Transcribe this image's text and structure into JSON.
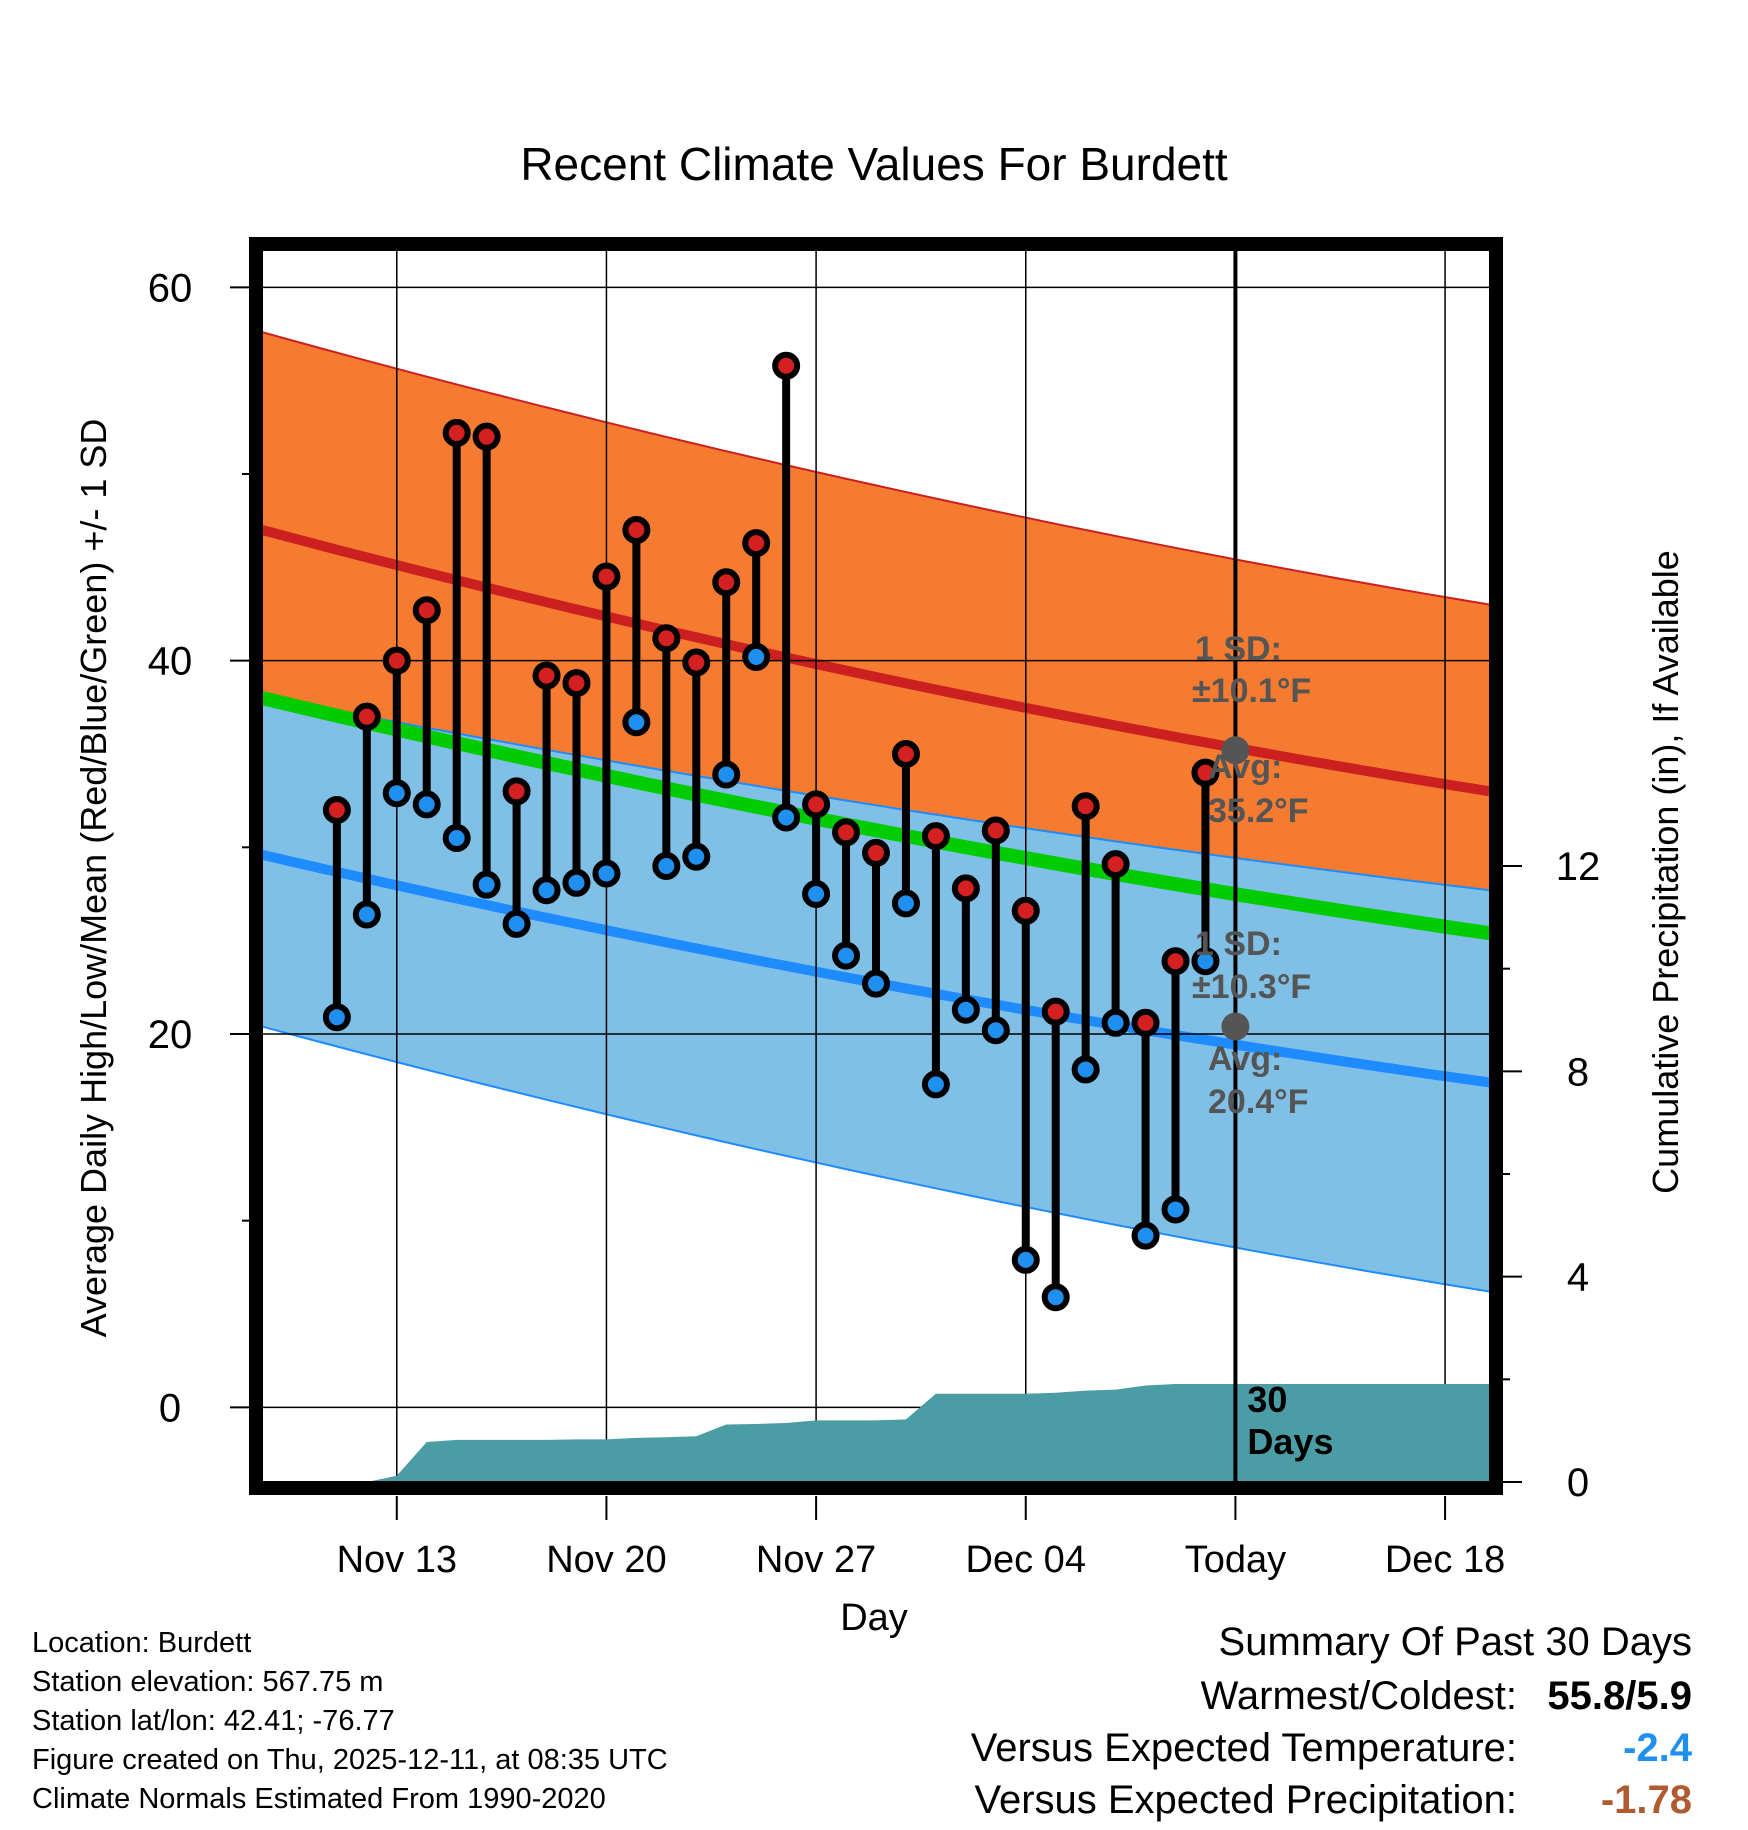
{
  "chart_data": {
    "type": "line",
    "title": "Recent Climate Values For Burdett",
    "xlabel": "Day",
    "ylabel": "Average Daily High/Low/Mean (Red/Blue/Green) +/- 1 SD",
    "y2label": "Cumulative Precipitation (in), If Available",
    "ylim": [
      -4,
      62
    ],
    "y2lim": [
      0,
      24
    ],
    "xlim": [
      -4.5,
      36.5
    ],
    "x_tick_labels": [
      "Nov 13",
      "Nov 20",
      "Nov 27",
      "Dec 04",
      "Today",
      "Dec 18"
    ],
    "x_tick_positions": [
      0,
      7,
      14,
      21,
      28,
      35
    ],
    "y_ticks": [
      0,
      20,
      40,
      60
    ],
    "y2_ticks": [
      0,
      4,
      8,
      12
    ],
    "today_x": 28,
    "days_label": "30\nDays",
    "daily_high": [
      32,
      37,
      40,
      42.7,
      52.2,
      52,
      33,
      39.2,
      38.8,
      44.5,
      47,
      41.2,
      39.9,
      44.2,
      46.3,
      55.8,
      32.3,
      30.8,
      29.7,
      35,
      30.6,
      27.8,
      30.9,
      26.6,
      21.2,
      32.2,
      29.1,
      20.6,
      23.9,
      34
    ],
    "daily_low": [
      20.9,
      26.4,
      32.9,
      32.3,
      30.5,
      28,
      25.9,
      27.7,
      28.1,
      28.6,
      36.7,
      29,
      29.5,
      33.9,
      40.2,
      31.6,
      27.5,
      24.2,
      22.7,
      27,
      17.3,
      21.3,
      20.2,
      7.9,
      5.9,
      18.1,
      20.6,
      9.2,
      10.6,
      23.9
    ],
    "normal_high_mean": [
      47,
      33
    ],
    "normal_high_upper": [
      57.6,
      43
    ],
    "normal_low_mean": [
      29.6,
      17.4
    ],
    "normal_low_lower": [
      20.4,
      6.2
    ],
    "normal_mean": [
      38,
      25.4
    ],
    "precip_cumulative": [
      0,
      0,
      0,
      0,
      0.12,
      0.78,
      0.82,
      0.82,
      0.82,
      0.82,
      0.83,
      0.83,
      0.86,
      0.87,
      0.89,
      1.12,
      1.13,
      1.15,
      1.2,
      1.2,
      1.2,
      1.22,
      1.72,
      1.72,
      1.72,
      1.72,
      1.74,
      1.78,
      1.8,
      1.88,
      1.91,
      1.91,
      1.91,
      1.91,
      1.91,
      1.91,
      1.91,
      1.91,
      1.91,
      1.91
    ],
    "annotations": {
      "high_sd_label": "1 SD:",
      "high_sd_value": "±10.1°F",
      "high_avg_label": "Avg:",
      "high_avg_value": "35.2°F",
      "low_sd_label": "1 SD:",
      "low_sd_value": "±10.3°F",
      "low_avg_label": "Avg:",
      "low_avg_value": "20.4°F",
      "high_avg_today": 35.2,
      "low_avg_today": 20.4
    }
  },
  "colors": {
    "orange_band": "#f47b30",
    "red_line": "#cc2020",
    "dark_red_band": "#951013",
    "green_line": "#00cc00",
    "blue_band": "#80c0e6",
    "blue_line": "#1e8cff",
    "precip": "#4a9ca5",
    "high_dot": "#d42020",
    "low_dot": "#2090f0",
    "annotation_text": "#555555",
    "temp_delta": "#2090f0",
    "precip_delta": "#b05a30"
  },
  "info": {
    "location": "Location: Burdett",
    "elevation": "Station elevation: 567.75 m",
    "latlon": "Station lat/lon: 42.41; -76.77",
    "created": "Figure created on Thu, 2025-12-11, at 08:35 UTC",
    "normals": "Climate Normals Estimated From 1990-2020"
  },
  "summary": {
    "title": "Summary Of Past 30 Days",
    "warm_cold_label": "Warmest/Coldest:",
    "warm_cold_value": "55.8/5.9",
    "temp_label": "Versus Expected Temperature:",
    "temp_value": "-2.4",
    "precip_label": "Versus Expected Precipitation:",
    "precip_value": "-1.78"
  }
}
